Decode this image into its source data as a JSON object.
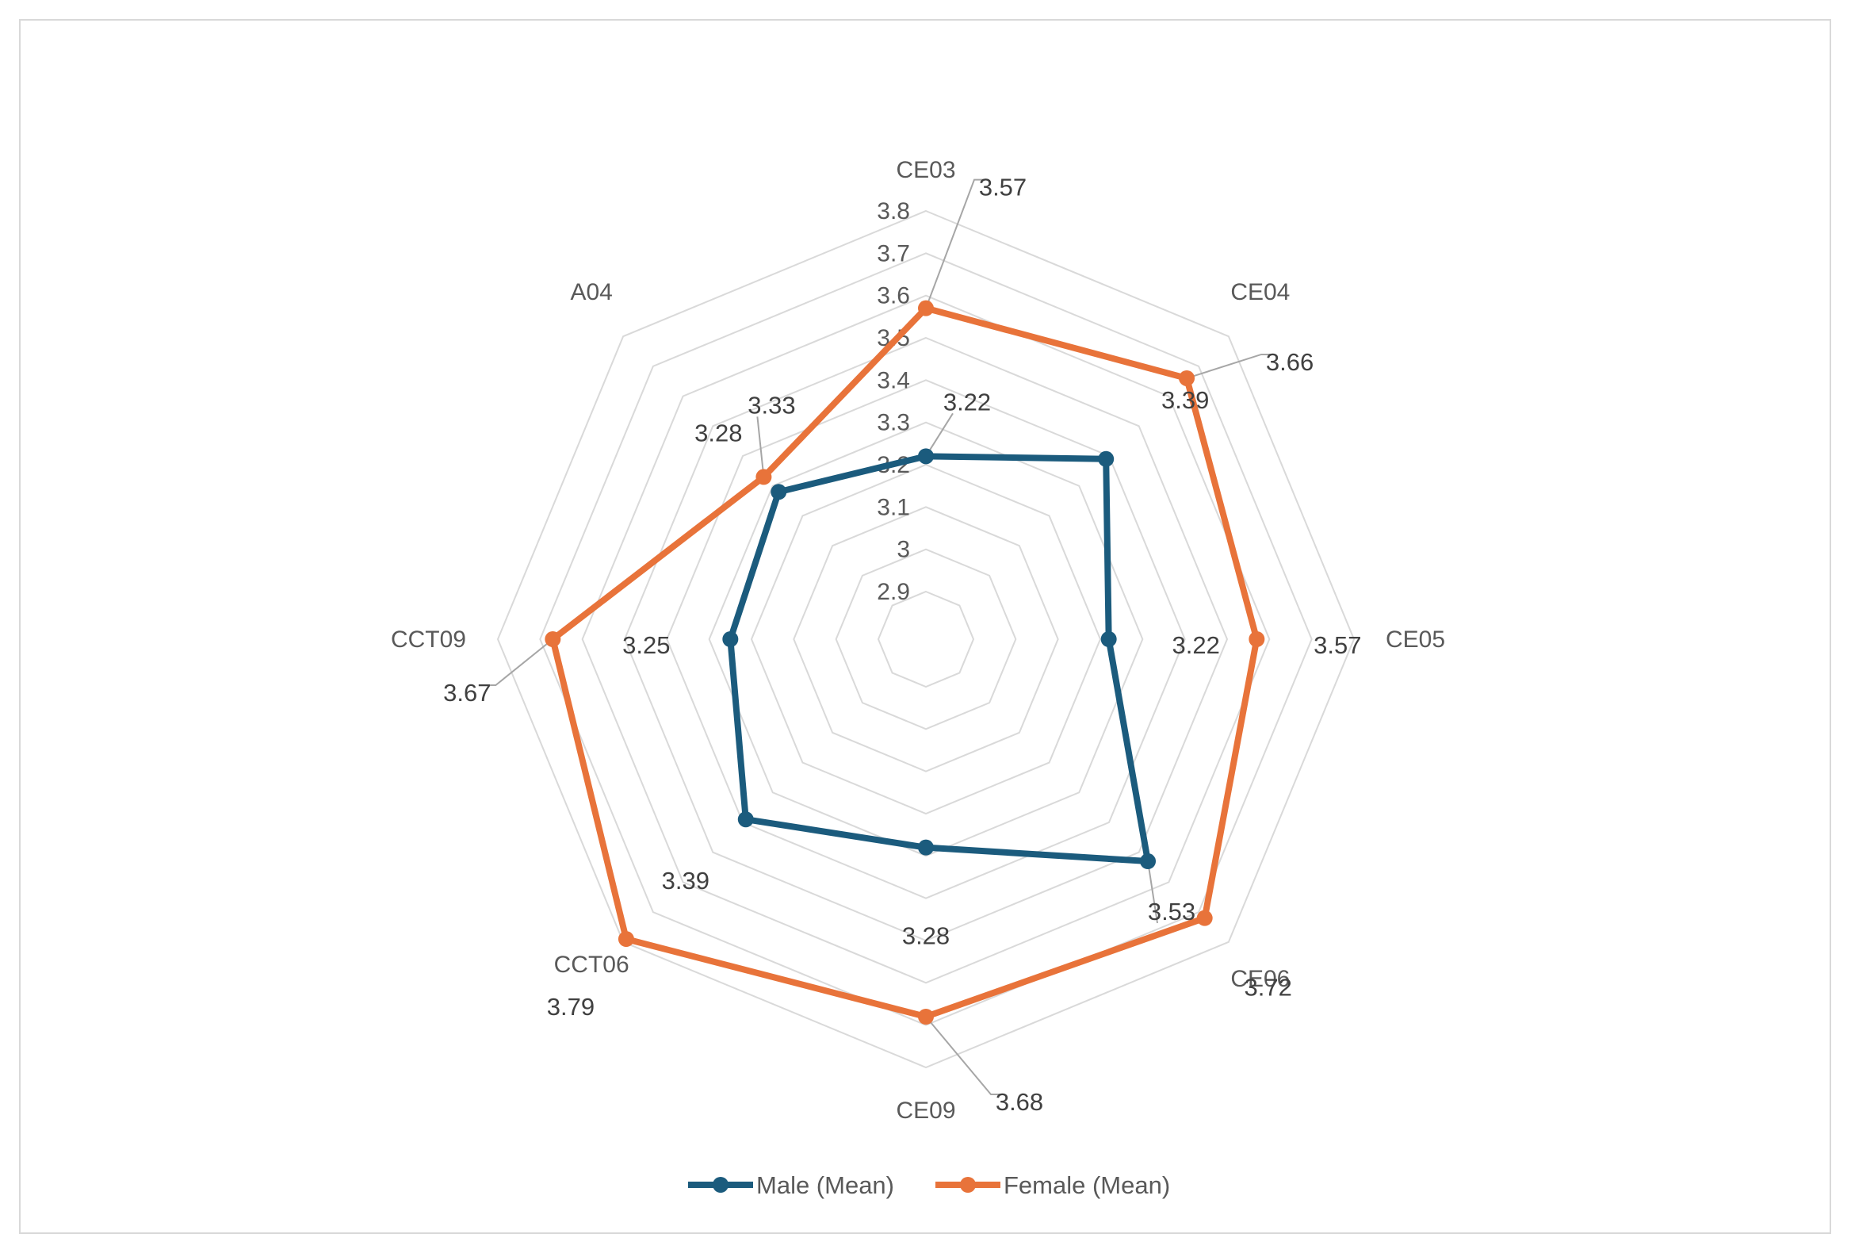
{
  "chart_data": {
    "type": "radar",
    "categories": [
      "CE03",
      "CE04",
      "CE05",
      "CE06",
      "CE09",
      "CCT06",
      "CCT09",
      "A04"
    ],
    "axis": {
      "min": 2.9,
      "max": 3.8,
      "ticks": [
        "2.9",
        "3",
        "3.1",
        "3.2",
        "3.3",
        "3.4",
        "3.5",
        "3.6",
        "3.7",
        "3.8"
      ]
    },
    "grid": true,
    "legend_position": "bottom",
    "series": [
      {
        "name": "Male (Mean)",
        "color": "#1b5b7d",
        "values": [
          3.22,
          3.39,
          3.22,
          3.53,
          3.28,
          3.39,
          3.25,
          3.28
        ],
        "labels": [
          "3.22",
          "3.39",
          "3.22",
          "3.53",
          "3.28",
          "3.39",
          "3.25",
          "3.28"
        ]
      },
      {
        "name": "Female (Mean)",
        "color": "#e8733a",
        "values": [
          3.57,
          3.66,
          3.57,
          3.72,
          3.68,
          3.79,
          3.67,
          3.33
        ],
        "labels": [
          "3.57",
          "3.66",
          "3.57",
          "3.72",
          "3.68",
          "3.79",
          "3.67",
          "3.33"
        ]
      }
    ]
  }
}
